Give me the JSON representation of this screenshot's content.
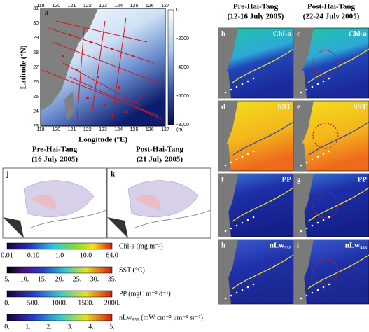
{
  "panel_a": {
    "letter": "a",
    "x_label": "Longitude (°E)",
    "y_label": "Latitude (°N)",
    "x_ticks": [
      "119",
      "120",
      "121",
      "122",
      "123",
      "124",
      "125",
      "126",
      "127"
    ],
    "y_ticks": [
      "31",
      "30",
      "29",
      "28",
      "27",
      "26",
      "25",
      "24",
      "23"
    ],
    "colorbar_ticks": [
      "0.",
      "-2000",
      "-4000",
      "-6000",
      "-8000"
    ],
    "colorbar_unit": "(m)"
  },
  "columns": {
    "pre": {
      "title": "Pre-Hai-Tang",
      "dates": "(12-16 July 2005)"
    },
    "post": {
      "title": "Post-Hai-Tang",
      "dates": "(22-24 July 2005)"
    }
  },
  "panels": [
    {
      "letter": "b",
      "label": "Chl-a"
    },
    {
      "letter": "c",
      "label": "Chl-a"
    },
    {
      "letter": "d",
      "label": "SST"
    },
    {
      "letter": "e",
      "label": "SST"
    },
    {
      "letter": "f",
      "label": "PP"
    },
    {
      "letter": "g",
      "label": "PP"
    },
    {
      "letter": "h",
      "label": "nLw₅₅₅"
    },
    {
      "letter": "i",
      "label": "nLw₅₅₅"
    }
  ],
  "vector_panels": [
    {
      "letter": "j",
      "title": "Pre-Hai-Tang",
      "dates": "(16 July 2005)"
    },
    {
      "letter": "k",
      "title": "Post-Hai-Tang",
      "dates": "(21 July 2005)"
    }
  ],
  "colorbars": [
    {
      "ticks": [
        "0.01",
        "0.10",
        "1.0",
        "10.0",
        "64.0"
      ],
      "label": "Chl-a (mg m⁻³)"
    },
    {
      "ticks": [
        "5.",
        "10.",
        "15.",
        "20.",
        "25.",
        "30.",
        "35."
      ],
      "label": "SST (°C)"
    },
    {
      "ticks": [
        "0.",
        "500.",
        "1000.",
        "1500.",
        "2000."
      ],
      "label": "PP (mgC m⁻² d⁻¹)"
    },
    {
      "ticks": [
        "0.",
        "1.",
        "2.",
        "3.",
        "4.",
        "5."
      ],
      "label": "nLw₅₅₅ (mW cm⁻² μm⁻¹ sr⁻¹)"
    }
  ]
}
